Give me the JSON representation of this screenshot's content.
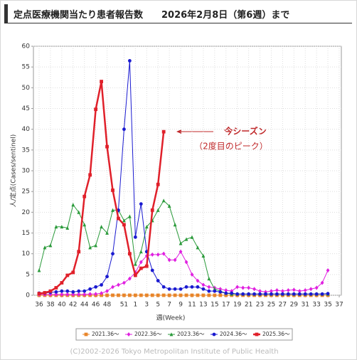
{
  "chart_data": {
    "type": "line",
    "title": "定点医療機関当たり患者報告数　　2026年2月8日（第6週）まで",
    "x_label": "週(Week)",
    "y_label": "人/定点(Cases/sentinel)",
    "annotation": "今シーズン",
    "annotation_sub": "（2度目のピーク）",
    "copyright": "(C)2002-2026 Tokyo Metropolitan Institute of Public Health",
    "categories": [
      "36",
      null,
      "38",
      null,
      "40",
      null,
      "42",
      null,
      "44",
      null,
      "46",
      null,
      "48",
      null,
      null,
      "51",
      null,
      "1",
      null,
      "3",
      null,
      "5",
      null,
      "7",
      null,
      "9",
      null,
      "11",
      null,
      "13",
      null,
      "15",
      null,
      "17",
      null,
      "19",
      null,
      "21",
      null,
      "23",
      null,
      "25",
      null,
      "27",
      null,
      "29",
      null,
      "31",
      null,
      "33",
      null,
      "35",
      null,
      "37"
    ],
    "ylim": [
      0,
      60
    ],
    "yticks": [
      0,
      5,
      10,
      15,
      20,
      25,
      30,
      35,
      40,
      45,
      50,
      55,
      60
    ],
    "grid": true,
    "legend": "bottom",
    "series": [
      {
        "name": "2021.36～",
        "color": "#e8852a",
        "marker": "square",
        "line_width": 1,
        "values": [
          0,
          0,
          0,
          0,
          0,
          0,
          0,
          0,
          0,
          0,
          0,
          0,
          0,
          0,
          0,
          0,
          0,
          0,
          0,
          0,
          0,
          0,
          0,
          0,
          0,
          0,
          0,
          0,
          0,
          0,
          0,
          0,
          0,
          0,
          0,
          0,
          0,
          0,
          0,
          0,
          0,
          0,
          0,
          0,
          0,
          0,
          0,
          0,
          0,
          0,
          0,
          0,
          null,
          null
        ]
      },
      {
        "name": "2022.36～",
        "color": "#e020e0",
        "marker": "diamond",
        "line_width": 1,
        "values": [
          0.2,
          0.2,
          0.2,
          0.2,
          0.2,
          0.2,
          0.2,
          0.2,
          0.2,
          0.3,
          0.3,
          0.5,
          1,
          2,
          2.5,
          3,
          4,
          5.5,
          8,
          9.5,
          9.8,
          9.8,
          10,
          8.5,
          8.5,
          10.5,
          8,
          5,
          3.5,
          2.5,
          2,
          1.8,
          1.5,
          1.2,
          1,
          2,
          1.8,
          1.8,
          1.5,
          1,
          0.8,
          1,
          1.2,
          1,
          1.2,
          1.3,
          1,
          1.2,
          1.5,
          1.8,
          3,
          6,
          null,
          null
        ]
      },
      {
        "name": "2023.36～",
        "color": "#2a9a3a",
        "marker": "triangle",
        "line_width": 1,
        "values": [
          6,
          11.5,
          12,
          16.5,
          16.5,
          16.2,
          21.8,
          20,
          17,
          11.5,
          12,
          16.5,
          15,
          20.5,
          20.5,
          18,
          19,
          7.5,
          10.5,
          16.5,
          18,
          20.5,
          22.8,
          21.5,
          17,
          12.5,
          13.5,
          14,
          11.5,
          9.5,
          4,
          1.5,
          1,
          0.5,
          0.3,
          0.3,
          0.3,
          0.3,
          0.3,
          0.3,
          0.3,
          0.3,
          0.3,
          0.3,
          0.3,
          0.3,
          0.3,
          0.3,
          0.3,
          0.3,
          0.3,
          0.3,
          null,
          null
        ]
      },
      {
        "name": "2024.36～",
        "color": "#1a1ad0",
        "marker": "circle",
        "line_width": 1,
        "values": [
          0.5,
          0.5,
          0.7,
          0.8,
          1,
          1,
          0.8,
          1,
          1,
          1.5,
          2,
          2.5,
          4.5,
          10,
          20.5,
          40,
          56.5,
          14,
          22,
          10.5,
          6,
          3.5,
          2,
          1.5,
          1.5,
          1.5,
          2,
          2,
          2,
          1.5,
          1,
          1,
          0.8,
          0.5,
          0.5,
          0.3,
          0.3,
          0.3,
          0.3,
          0.3,
          0.3,
          0.3,
          0.3,
          0.3,
          0.3,
          0.3,
          0.3,
          0.3,
          0.3,
          0.3,
          0.3,
          0.4,
          null,
          null
        ]
      },
      {
        "name": "2025.36～",
        "color": "#e0202a",
        "marker": "square",
        "line_width": 2.5,
        "values": [
          0.4,
          0.6,
          1,
          1.8,
          3,
          4.8,
          5.5,
          10.5,
          23.8,
          29,
          44.8,
          51.5,
          35.8,
          25.3,
          18.5,
          17,
          10,
          4.8,
          6.5,
          7,
          20.5,
          26.7,
          39.4,
          null,
          null,
          null,
          null,
          null,
          null,
          null,
          null,
          null,
          null,
          null,
          null,
          null,
          null,
          null,
          null,
          null,
          null,
          null,
          null,
          null,
          null,
          null,
          null,
          null,
          null,
          null,
          null,
          null,
          null,
          null
        ]
      }
    ]
  }
}
